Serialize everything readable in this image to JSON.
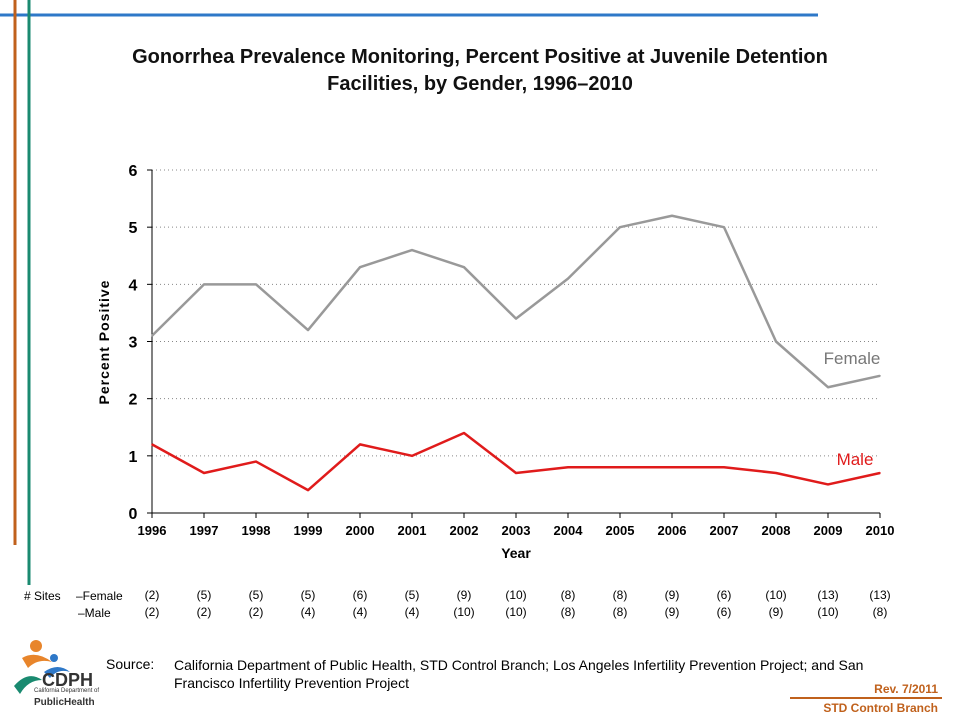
{
  "colors": {
    "female": "#999999",
    "male": "#e01b1b",
    "frame_blue": "#2e78c8",
    "frame_orange": "#c0611c",
    "frame_teal": "#1a8a70"
  },
  "chart_data": {
    "type": "line",
    "title": "Gonorrhea Prevalence Monitoring, Percent Positive at Juvenile Detention Facilities, by Gender, 1996–2010",
    "xlabel": "Year",
    "ylabel": "Percent Positive",
    "x": [
      "1996",
      "1997",
      "1998",
      "1999",
      "2000",
      "2001",
      "2002",
      "2003",
      "2004",
      "2005",
      "2006",
      "2007",
      "2008",
      "2009",
      "2010"
    ],
    "ylim": [
      0,
      6
    ],
    "yticks": [
      "0",
      "1",
      "2",
      "3",
      "4",
      "5",
      "6"
    ],
    "grid": "horizontal dotted",
    "series": [
      {
        "name": "Female",
        "values": [
          3.1,
          4.0,
          4.0,
          3.2,
          4.3,
          4.6,
          4.3,
          3.4,
          4.1,
          5.0,
          5.2,
          5.0,
          3.0,
          2.2,
          2.4
        ]
      },
      {
        "name": "Male",
        "values": [
          1.2,
          0.7,
          0.9,
          0.4,
          1.2,
          1.0,
          1.4,
          0.7,
          0.8,
          0.8,
          0.8,
          0.8,
          0.7,
          0.5,
          0.7
        ]
      }
    ]
  },
  "sites": {
    "label": "# Sites",
    "female_label": "–Female",
    "male_label": "–Male",
    "female": [
      "(2)",
      "(5)",
      "(5)",
      "(5)",
      "(6)",
      "(5)",
      "(9)",
      "(10)",
      "(8)",
      "(8)",
      "(9)",
      "(6)",
      "(10)",
      "(13)",
      "(13)"
    ],
    "male": [
      "(2)",
      "(2)",
      "(2)",
      "(4)",
      "(4)",
      "(4)",
      "(10)",
      "(10)",
      "(8)",
      "(8)",
      "(9)",
      "(6)",
      "(9)",
      "(10)",
      "(8)"
    ]
  },
  "source": {
    "label": "Source:",
    "text": "California Department of Public Health, STD Control Branch; Los Angeles Infertility Prevention Project; and San Francisco Infertility Prevention Project"
  },
  "footer": {
    "rev": "Rev. 7/2011",
    "branch": "STD Control Branch"
  },
  "logo": {
    "line1": "California Department of",
    "line2": "PublicHealth"
  }
}
